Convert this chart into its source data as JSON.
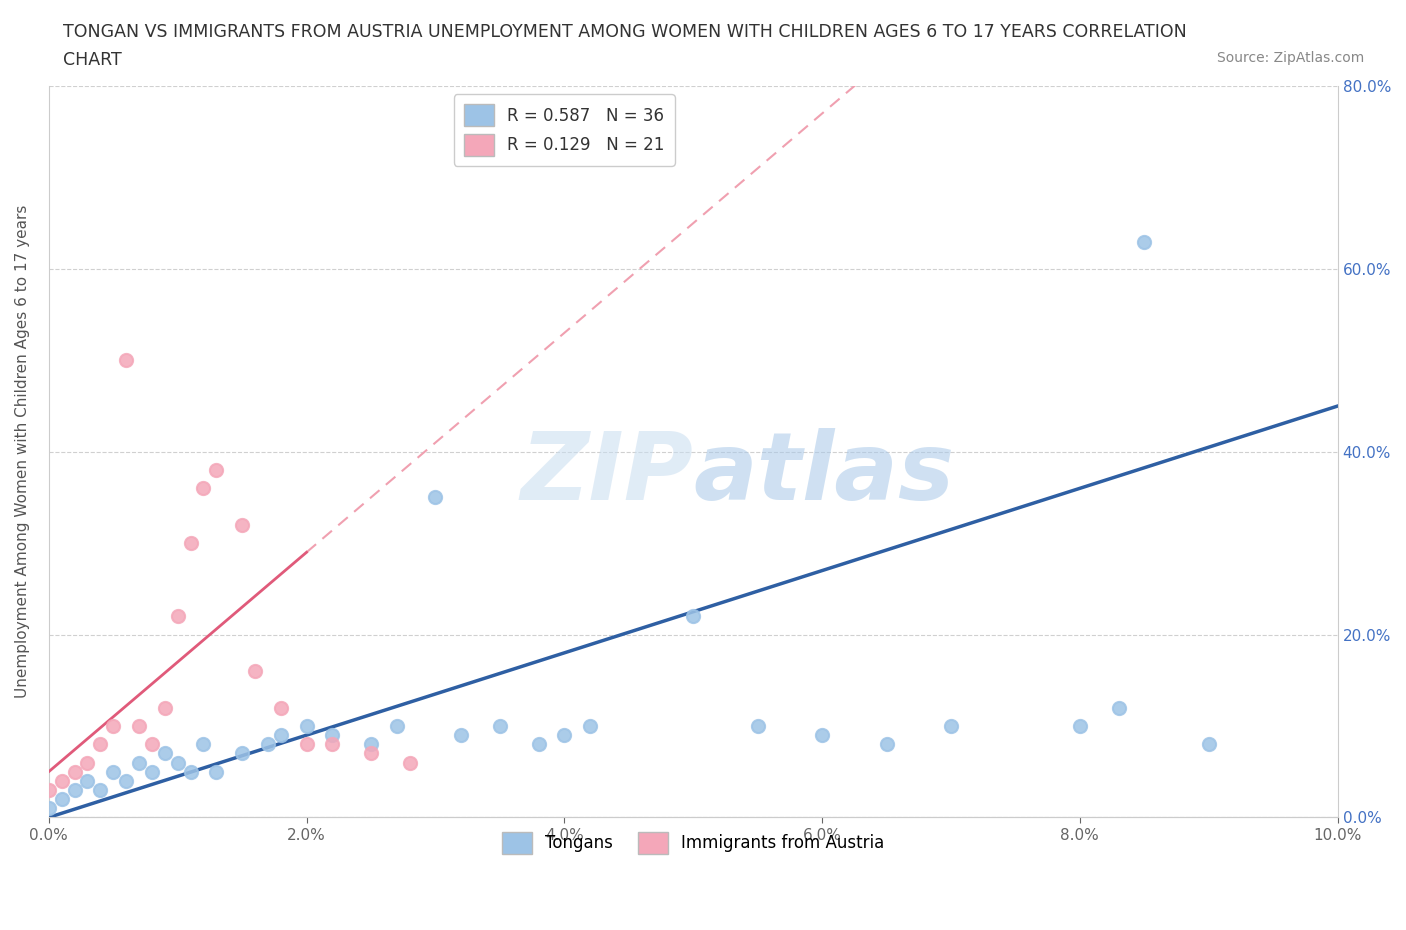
{
  "title_line1": "TONGAN VS IMMIGRANTS FROM AUSTRIA UNEMPLOYMENT AMONG WOMEN WITH CHILDREN AGES 6 TO 17 YEARS CORRELATION",
  "title_line2": "CHART",
  "source_text": "Source: ZipAtlas.com",
  "ylabel": "Unemployment Among Women with Children Ages 6 to 17 years",
  "xmin": 0.0,
  "xmax": 0.1,
  "ymin": 0.0,
  "ymax": 0.8,
  "xticks": [
    0.0,
    0.02,
    0.04,
    0.06,
    0.08,
    0.1
  ],
  "xtick_labels": [
    "0.0%",
    "2.0%",
    "4.0%",
    "6.0%",
    "8.0%",
    "10.0%"
  ],
  "yticks": [
    0.0,
    0.2,
    0.4,
    0.6,
    0.8
  ],
  "ytick_labels_right": [
    "0.0%",
    "20.0%",
    "40.0%",
    "60.0%",
    "80.0%"
  ],
  "tongans_R": 0.587,
  "tongans_N": 36,
  "austria_R": 0.129,
  "austria_N": 21,
  "blue_color": "#9dc3e6",
  "pink_color": "#f4a7b9",
  "blue_line_color": "#2e5fa3",
  "pink_solid_color": "#e05a7a",
  "pink_dash_color": "#f0a0b0",
  "watermark": "ZIPatlas",
  "tongans_x": [
    0.0,
    0.001,
    0.002,
    0.003,
    0.004,
    0.005,
    0.006,
    0.007,
    0.008,
    0.009,
    0.01,
    0.011,
    0.012,
    0.013,
    0.015,
    0.017,
    0.018,
    0.02,
    0.022,
    0.025,
    0.027,
    0.03,
    0.032,
    0.035,
    0.038,
    0.04,
    0.042,
    0.05,
    0.055,
    0.06,
    0.065,
    0.07,
    0.08,
    0.083,
    0.085,
    0.09
  ],
  "tongans_y": [
    0.01,
    0.02,
    0.03,
    0.04,
    0.03,
    0.05,
    0.04,
    0.06,
    0.05,
    0.07,
    0.06,
    0.05,
    0.08,
    0.05,
    0.07,
    0.08,
    0.09,
    0.1,
    0.09,
    0.08,
    0.1,
    0.35,
    0.09,
    0.1,
    0.08,
    0.09,
    0.1,
    0.22,
    0.1,
    0.09,
    0.08,
    0.1,
    0.1,
    0.12,
    0.63,
    0.08
  ],
  "austria_x": [
    0.0,
    0.001,
    0.002,
    0.003,
    0.004,
    0.005,
    0.006,
    0.007,
    0.008,
    0.009,
    0.01,
    0.011,
    0.012,
    0.013,
    0.015,
    0.016,
    0.018,
    0.02,
    0.022,
    0.025,
    0.028
  ],
  "austria_y": [
    0.03,
    0.04,
    0.05,
    0.06,
    0.08,
    0.1,
    0.5,
    0.1,
    0.08,
    0.12,
    0.22,
    0.3,
    0.36,
    0.38,
    0.32,
    0.16,
    0.12,
    0.08,
    0.08,
    0.07,
    0.06
  ]
}
